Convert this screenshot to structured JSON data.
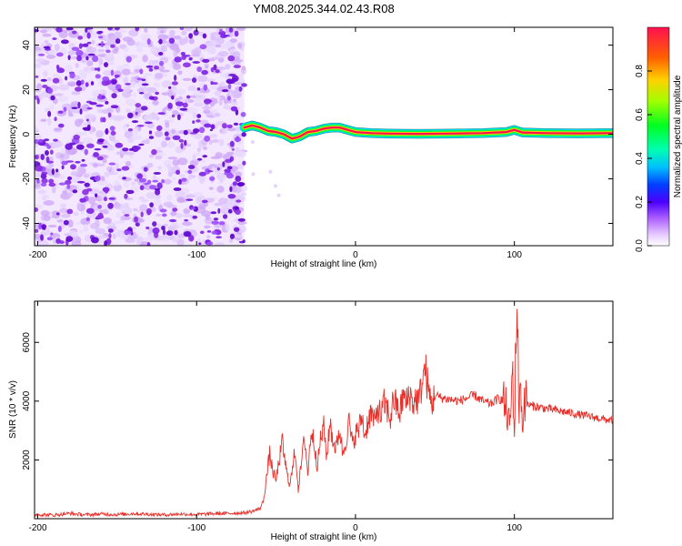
{
  "title": "YM08.2025.344.02.43.R08",
  "chart_data": [
    {
      "type": "heatmap",
      "title": "YM08.2025.344.02.43.R08",
      "xlabel": "Height of straight line (km)",
      "ylabel": "Frequency (Hz)",
      "xlim": [
        -202,
        162
      ],
      "ylim": [
        -50,
        48
      ],
      "x_ticks": [
        -200,
        -100,
        0,
        100
      ],
      "y_ticks": [
        -40,
        -20,
        0,
        20,
        40
      ],
      "x_tick_labels": [
        "-200",
        "-100",
        "0",
        "100"
      ],
      "y_tick_labels": [
        "-40",
        "-20",
        "0",
        "20",
        "40"
      ],
      "noise_region_x": [
        -202,
        -70
      ],
      "signal_start_x": -70,
      "signal_ridge": {
        "x": [
          -70,
          -65,
          -60,
          -55,
          -50,
          -45,
          -40,
          -35,
          -30,
          -25,
          -20,
          -15,
          -10,
          -5,
          0,
          10,
          20,
          40,
          60,
          80,
          95,
          100,
          105,
          120,
          140,
          162
        ],
        "freq": [
          3,
          4,
          3,
          1.5,
          1,
          0,
          -2,
          -1,
          1,
          1.5,
          2.5,
          3,
          3,
          2,
          1,
          0.5,
          0.3,
          0.2,
          0.3,
          0.5,
          1,
          2,
          0.8,
          0.5,
          0.4,
          0.5
        ]
      },
      "colorbar": {
        "label": "Normalized spectral amplitude",
        "range": [
          0,
          1
        ],
        "ticks": [
          0.0,
          0.2,
          0.4,
          0.6,
          0.8
        ],
        "tick_labels": [
          "0.0",
          "0.2",
          "0.4",
          "0.6",
          "0.8"
        ],
        "colormap": "rainbow"
      }
    },
    {
      "type": "line",
      "xlabel": "Height of straight line (km)",
      "ylabel": "SNR (10 * v/v)",
      "xlim": [
        -202,
        162
      ],
      "ylim": [
        0,
        7400
      ],
      "x_ticks": [
        -200,
        -100,
        0,
        100
      ],
      "y_ticks": [
        2000,
        4000,
        6000
      ],
      "x_tick_labels": [
        "-200",
        "-100",
        "0",
        "100"
      ],
      "y_tick_labels": [
        "2000",
        "4000",
        "6000"
      ],
      "series": [
        {
          "name": "SNR",
          "color": "#e8302a",
          "x": [
            -202,
            -190,
            -180,
            -170,
            -160,
            -150,
            -140,
            -130,
            -120,
            -110,
            -100,
            -90,
            -80,
            -70,
            -65,
            -60,
            -58,
            -56,
            -54,
            -52,
            -50,
            -48,
            -46,
            -44,
            -42,
            -40,
            -38,
            -36,
            -34,
            -32,
            -30,
            -28,
            -26,
            -24,
            -22,
            -20,
            -18,
            -16,
            -14,
            -12,
            -10,
            -8,
            -6,
            -4,
            -2,
            0,
            2,
            4,
            6,
            8,
            10,
            12,
            14,
            16,
            18,
            20,
            22,
            24,
            26,
            28,
            30,
            32,
            34,
            36,
            38,
            40,
            42,
            44,
            46,
            48,
            50,
            55,
            60,
            65,
            70,
            75,
            80,
            85,
            90,
            93,
            95,
            97,
            99,
            100,
            101,
            102,
            103,
            104,
            105,
            106,
            108,
            110,
            115,
            120,
            125,
            130,
            135,
            140,
            145,
            150,
            155,
            160,
            162
          ],
          "values": [
            150,
            120,
            180,
            130,
            160,
            140,
            170,
            150,
            130,
            160,
            140,
            170,
            180,
            200,
            250,
            350,
            600,
            1400,
            2200,
            1600,
            1300,
            2000,
            2600,
            1800,
            1200,
            1500,
            2400,
            1000,
            1900,
            2800,
            1500,
            3000,
            2600,
            1800,
            2700,
            3100,
            2100,
            3300,
            2600,
            2400,
            3100,
            2200,
            2700,
            3300,
            2500,
            2900,
            3000,
            3500,
            2800,
            3400,
            3600,
            3200,
            3800,
            3500,
            3900,
            3700,
            3400,
            4100,
            3800,
            3600,
            4200,
            3900,
            4300,
            3900,
            4100,
            4000,
            4700,
            5100,
            4300,
            3900,
            4200,
            4100,
            4050,
            4000,
            4100,
            4200,
            4000,
            3900,
            4100,
            4000,
            3700,
            3100,
            5000,
            2700,
            6300,
            7200,
            3200,
            5100,
            2800,
            4200,
            3900,
            3850,
            3800,
            3750,
            3700,
            3650,
            3600,
            3550,
            3500,
            3450,
            3400,
            3350,
            3350
          ]
        }
      ]
    }
  ]
}
